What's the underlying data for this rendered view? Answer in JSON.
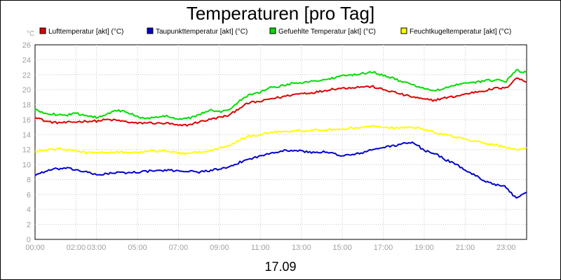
{
  "chart_data": {
    "type": "line",
    "title": "Temperaturen [pro Tag]",
    "xlabel": "17.09",
    "ylabel": "°C",
    "ylim": [
      0,
      26
    ],
    "yticks": [
      0,
      2,
      4,
      6,
      8,
      10,
      12,
      14,
      16,
      18,
      20,
      22,
      24,
      26
    ],
    "xlim": [
      0,
      24
    ],
    "xticks": [
      {
        "h": 0,
        "label": "00:00"
      },
      {
        "h": 2,
        "label": "02:00"
      },
      {
        "h": 3,
        "label": "03:00"
      },
      {
        "h": 5,
        "label": "05:00"
      },
      {
        "h": 7,
        "label": "07:00"
      },
      {
        "h": 9,
        "label": "09:00"
      },
      {
        "h": 11,
        "label": "11:00"
      },
      {
        "h": 13,
        "label": "13:00"
      },
      {
        "h": 15,
        "label": "15:00"
      },
      {
        "h": 17,
        "label": "17:00"
      },
      {
        "h": 19,
        "label": "19:00"
      },
      {
        "h": 21,
        "label": "21:00"
      },
      {
        "h": 23,
        "label": "23:00"
      }
    ],
    "grid": true,
    "legend_position": "top",
    "x": [
      0,
      0.5,
      1,
      1.5,
      2,
      2.5,
      3,
      3.5,
      4,
      4.5,
      5,
      5.5,
      6,
      6.5,
      7,
      7.5,
      8,
      8.5,
      9,
      9.5,
      10,
      10.5,
      11,
      11.5,
      12,
      12.5,
      13,
      13.5,
      14,
      14.5,
      15,
      15.5,
      16,
      16.5,
      17,
      17.5,
      18,
      18.5,
      19,
      19.5,
      20,
      20.5,
      21,
      21.5,
      22,
      22.5,
      23,
      23.5,
      24
    ],
    "series": [
      {
        "name": "Lufttemperatur [akt] (°C)",
        "color": "#e00000",
        "values": [
          16.4,
          15.8,
          15.6,
          15.6,
          15.7,
          15.8,
          15.8,
          16.0,
          15.9,
          15.7,
          15.5,
          15.6,
          15.5,
          15.5,
          15.2,
          15.3,
          15.7,
          16.0,
          16.3,
          16.6,
          17.6,
          18.3,
          18.4,
          18.8,
          19.0,
          19.3,
          19.5,
          19.6,
          19.8,
          20.1,
          20.2,
          20.3,
          20.4,
          20.4,
          20.0,
          19.7,
          19.3,
          19.0,
          18.7,
          18.6,
          18.9,
          19.1,
          19.4,
          19.7,
          19.9,
          20.2,
          20.2,
          21.6,
          21.0
        ]
      },
      {
        "name": "Taupunkttemperatur [akt] (°C)",
        "color": "#0000d0",
        "values": [
          8.6,
          9.1,
          9.4,
          9.5,
          9.3,
          9.0,
          8.6,
          8.8,
          8.9,
          8.9,
          9.0,
          9.1,
          9.2,
          9.2,
          9.2,
          9.1,
          9.0,
          9.2,
          9.4,
          9.6,
          10.3,
          10.8,
          11.1,
          11.6,
          11.8,
          11.9,
          11.8,
          11.6,
          11.7,
          11.5,
          11.2,
          11.3,
          11.6,
          12.0,
          12.3,
          12.5,
          12.8,
          12.9,
          11.9,
          11.5,
          10.7,
          10.1,
          9.3,
          8.5,
          7.8,
          7.3,
          7.0,
          5.4,
          6.3
        ]
      },
      {
        "name": "Gefuehlte Temperatur [akt] (°C)",
        "color": "#00dd00",
        "values": [
          17.3,
          16.9,
          16.7,
          16.6,
          16.8,
          16.6,
          16.3,
          16.8,
          17.2,
          17.0,
          16.4,
          16.2,
          16.3,
          16.5,
          16.1,
          16.2,
          16.6,
          17.3,
          17.0,
          17.4,
          18.6,
          19.4,
          19.7,
          20.3,
          20.5,
          20.8,
          21.0,
          21.1,
          21.3,
          21.5,
          21.8,
          22.0,
          22.2,
          22.4,
          21.9,
          21.5,
          21.0,
          20.6,
          20.2,
          19.8,
          20.2,
          20.6,
          20.8,
          21.0,
          21.2,
          21.3,
          21.1,
          22.6,
          22.3
        ]
      },
      {
        "name": "Feuchtkugeltemperatur [akt] (°C)",
        "color": "#ffff00",
        "values": [
          11.6,
          12.0,
          12.1,
          12.0,
          11.8,
          11.6,
          11.5,
          11.7,
          11.7,
          11.6,
          11.6,
          11.8,
          11.8,
          11.8,
          11.5,
          11.5,
          11.7,
          11.9,
          12.2,
          12.5,
          13.3,
          13.8,
          14.0,
          14.3,
          14.4,
          14.5,
          14.5,
          14.6,
          14.6,
          14.7,
          14.7,
          14.9,
          15.0,
          15.2,
          15.0,
          14.9,
          14.9,
          15.0,
          14.7,
          14.3,
          14.0,
          13.7,
          13.4,
          13.1,
          12.8,
          12.6,
          12.3,
          12.0,
          12.3
        ]
      }
    ]
  }
}
